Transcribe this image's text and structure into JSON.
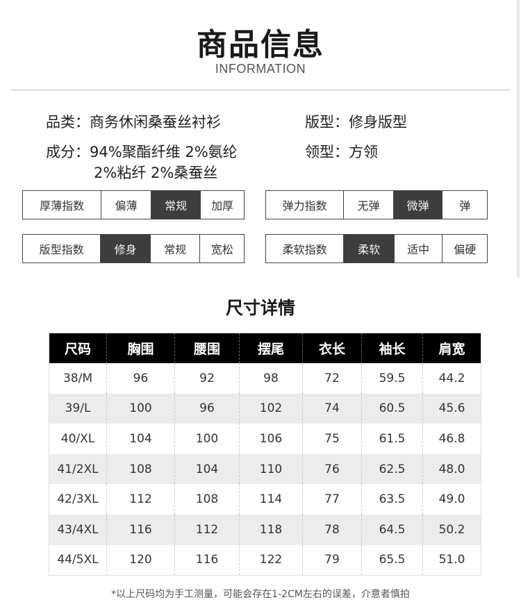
{
  "header": {
    "title": "商品信息",
    "subtitle": "INFORMATION"
  },
  "attributes": {
    "category": "品类：商务休闲桑蚕丝衬衫",
    "fit": "版型：修身版型",
    "composition_line1": "成分：94%聚酯纤维 2%氨纶",
    "composition_line2": "2%粘纤 2%桑蚕丝",
    "collar": "领型：方领"
  },
  "scales": [
    {
      "label": "厚薄指数",
      "options": [
        "偏薄",
        "常规",
        "加厚"
      ],
      "selected": "常规"
    },
    {
      "label": "弹力指数",
      "options": [
        "无弹",
        "微弹",
        "弹"
      ],
      "selected": "微弹"
    },
    {
      "label": "版型指数",
      "options": [
        "修身",
        "常规",
        "宽松"
      ],
      "selected": "修身"
    },
    {
      "label": "柔软指数",
      "options": [
        "柔软",
        "适中",
        "偏硬"
      ],
      "selected": "柔软"
    }
  ],
  "size_section": {
    "title": "尺寸详情",
    "columns": [
      "尺码",
      "胸围",
      "腰围",
      "摆尾",
      "衣长",
      "袖长",
      "肩宽"
    ],
    "rows": [
      [
        "38/M",
        "96",
        "92",
        "98",
        "72",
        "59.5",
        "44.2"
      ],
      [
        "39/L",
        "100",
        "96",
        "102",
        "74",
        "60.5",
        "45.6"
      ],
      [
        "40/XL",
        "104",
        "100",
        "106",
        "75",
        "61.5",
        "46.8"
      ],
      [
        "41/2XL",
        "108",
        "104",
        "110",
        "76",
        "62.5",
        "48.0"
      ],
      [
        "42/3XL",
        "112",
        "108",
        "114",
        "77",
        "63.5",
        "49.0"
      ],
      [
        "43/4XL",
        "116",
        "112",
        "118",
        "78",
        "64.5",
        "50.2"
      ],
      [
        "44/5XL",
        "120",
        "116",
        "122",
        "79",
        "65.5",
        "51.0"
      ]
    ],
    "note": "*以上尺码均为手工测量，可能会存在1-2CM左右的误差，介意者慎拍"
  },
  "colors": {
    "selected_fill": "#3d3d3d",
    "header_fill": "#000000",
    "alt_row": "#ececec"
  }
}
